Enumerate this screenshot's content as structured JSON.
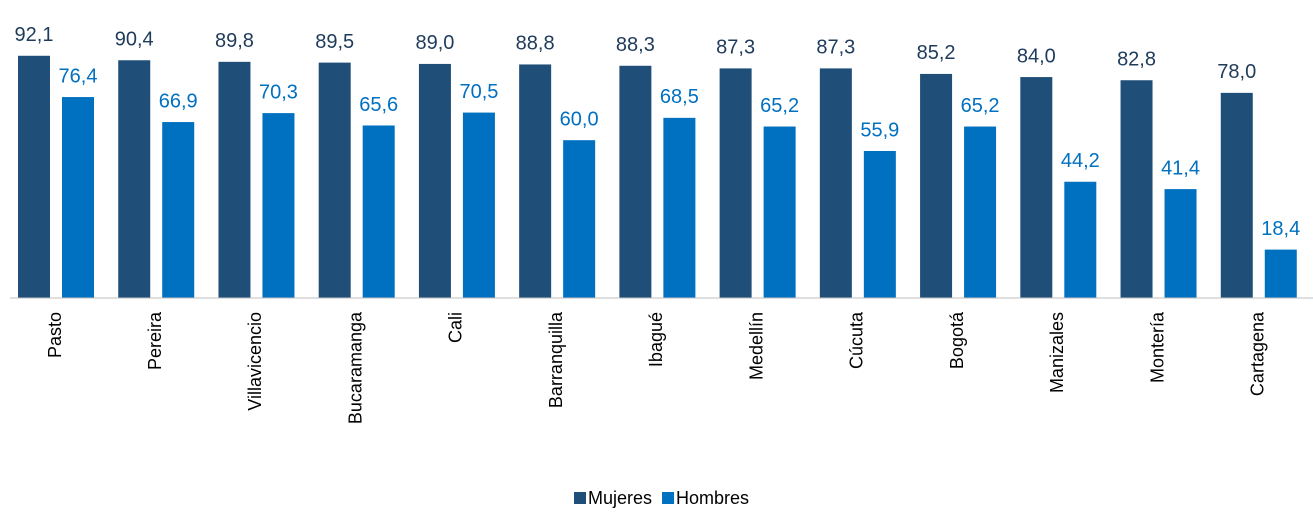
{
  "chart_data": {
    "type": "bar",
    "categories": [
      "Pasto",
      "Pereira",
      "Villavicencio",
      "Bucaramanga",
      "Cali",
      "Barranquilla",
      "Ibagué",
      "Medellín",
      "Cúcuta",
      "Bogotá",
      "Manizales",
      "Montería",
      "Cartagena"
    ],
    "series": [
      {
        "name": "Mujeres",
        "color": "#1f4e79",
        "values": [
          92.1,
          90.4,
          89.8,
          89.5,
          89.0,
          88.8,
          88.3,
          87.3,
          87.3,
          85.2,
          84.0,
          82.8,
          78.0
        ],
        "value_labels": [
          "92,1",
          "90,4",
          "89,8",
          "89,5",
          "89,0",
          "88,8",
          "88,3",
          "87,3",
          "87,3",
          "85,2",
          "84,0",
          "82,8",
          "78,0"
        ]
      },
      {
        "name": "Hombres",
        "color": "#0070c0",
        "values": [
          76.4,
          66.9,
          70.3,
          65.6,
          70.5,
          60.0,
          68.5,
          65.2,
          55.9,
          65.2,
          44.2,
          41.4,
          18.4
        ],
        "value_labels": [
          "76,4",
          "66,9",
          "70,3",
          "65,6",
          "70,5",
          "60,0",
          "68,5",
          "65,2",
          "55,9",
          "65,2",
          "44,2",
          "41,4",
          "18,4"
        ]
      }
    ],
    "ylim": [
      0,
      100
    ],
    "legend": "bottom"
  }
}
